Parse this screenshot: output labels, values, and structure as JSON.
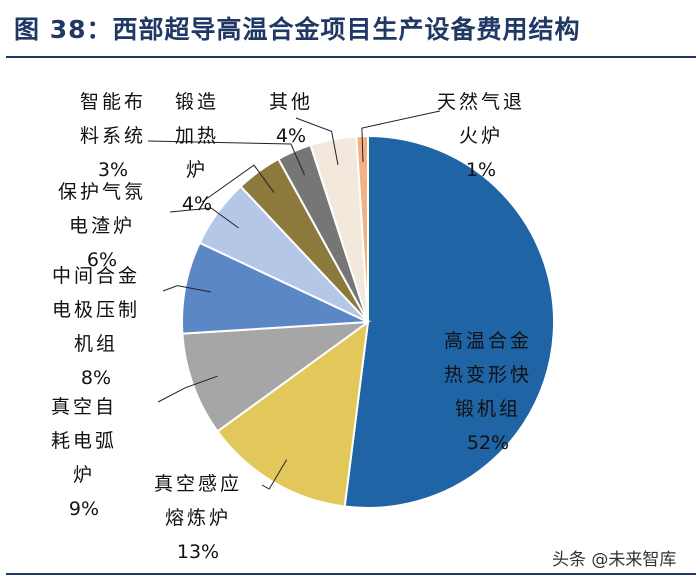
{
  "title": "图 38：西部超导高温合金项目生产设备费用结构",
  "watermark": "头条 @未来智库",
  "chart_data": {
    "type": "pie",
    "title": "图 38：西部超导高温合金项目生产设备费用结构",
    "slices": [
      {
        "name": "高温合金热变形快锻机组",
        "label_lines": [
          "高温合金",
          "热变形快",
          "锻机组"
        ],
        "value": 52,
        "value_label": "52%",
        "color": "#1f64a4"
      },
      {
        "name": "真空感应熔炼炉",
        "label_lines": [
          "真空感应",
          "熔炼炉"
        ],
        "value": 13,
        "value_label": "13%",
        "color": "#e2c85a"
      },
      {
        "name": "真空自耗电弧炉",
        "label_lines": [
          "真空自",
          "耗电弧",
          "炉"
        ],
        "value": 9,
        "value_label": "9%",
        "color": "#a6a6a6"
      },
      {
        "name": "中间合金电极压制机组",
        "label_lines": [
          "中间合金",
          "电极压制",
          "机组"
        ],
        "value": 8,
        "value_label": "8%",
        "color": "#5b87c6"
      },
      {
        "name": "保护气氛电渣炉",
        "label_lines": [
          "保护气氛",
          "电渣炉"
        ],
        "value": 6,
        "value_label": "6%",
        "color": "#b4c7e7"
      },
      {
        "name": "锻造加热炉",
        "label_lines": [
          "锻造",
          "加热",
          "炉"
        ],
        "value": 4,
        "value_label": "4%",
        "color": "#8c7a3c"
      },
      {
        "name": "智能布料系统",
        "label_lines": [
          "智能布",
          "料系统"
        ],
        "value": 3,
        "value_label": "3%",
        "color": "#767676"
      },
      {
        "name": "其他",
        "label_lines": [
          "其他"
        ],
        "value": 4,
        "value_label": "4%",
        "color": "#f2e8dc"
      },
      {
        "name": "天然气退火炉",
        "label_lines": [
          "天然气退",
          "火炉"
        ],
        "value": 1,
        "value_label": "1%",
        "color": "#f4b183"
      }
    ]
  }
}
